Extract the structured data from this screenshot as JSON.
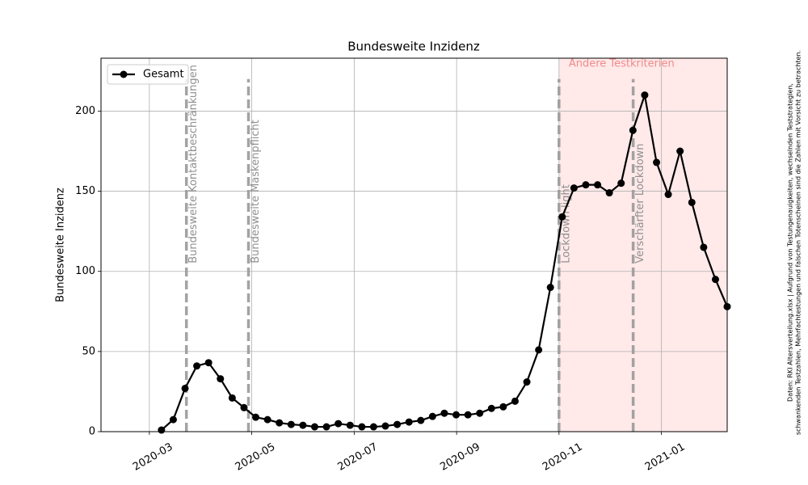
{
  "chart_data": {
    "type": "line",
    "title": "Bundesweite Inzidenz",
    "y_label": "Bundesweite Inzidenz",
    "x": [
      2020.1864,
      2020.2056,
      2020.2248,
      2020.2439,
      2020.2631,
      2020.2823,
      2020.3015,
      2020.3207,
      2020.3398,
      2020.359,
      2020.3782,
      2020.3974,
      2020.4166,
      2020.4357,
      2020.4549,
      2020.4741,
      2020.4933,
      2020.5125,
      2020.5316,
      2020.5508,
      2020.57,
      2020.5892,
      2020.6084,
      2020.6275,
      2020.6467,
      2020.6659,
      2020.6851,
      2020.7043,
      2020.7234,
      2020.7426,
      2020.7618,
      2020.781,
      2020.8002,
      2020.8193,
      2020.8385,
      2020.8577,
      2020.8769,
      2020.8961,
      2020.9152,
      2020.9344,
      2020.9536,
      2020.9728,
      2020.992,
      2021.0111,
      2021.0303,
      2021.0495,
      2021.0687,
      2021.0879,
      2021.107
    ],
    "series": [
      {
        "name": "Gesamt",
        "color": "#000000",
        "values": [
          1,
          7.5,
          27,
          41,
          43,
          33,
          21,
          15,
          9,
          7.5,
          5.5,
          4.5,
          4,
          3,
          3,
          5,
          4,
          3,
          3,
          3.5,
          4.5,
          6,
          7,
          9.5,
          11.5,
          10.5,
          10.5,
          11.5,
          14.5,
          15.5,
          19,
          31,
          51,
          90,
          134,
          152,
          154,
          154,
          149,
          155,
          188,
          210,
          168,
          148,
          175,
          143,
          115,
          95,
          78
        ]
      }
    ],
    "xlim": [
      2020.088,
      2021.107
    ],
    "ylim": [
      0,
      233
    ],
    "xticks": [
      {
        "value": 2020.1667,
        "label": "2020-03"
      },
      {
        "value": 2020.3333,
        "label": "2020-05"
      },
      {
        "value": 2020.5,
        "label": "2020-07"
      },
      {
        "value": 2020.6667,
        "label": "2020-09"
      },
      {
        "value": 2020.8333,
        "label": "2020-11"
      },
      {
        "value": 2021.0,
        "label": "2021-01"
      }
    ],
    "yticks": [
      0,
      50,
      100,
      150,
      200
    ],
    "grid": true,
    "legend": "upper left",
    "events": [
      {
        "x": 2020.227,
        "label": "Bundesweite Kontaktbeschränkungen"
      },
      {
        "x": 2020.328,
        "label": "Bundesweite Maskenpflicht"
      },
      {
        "x": 2020.8333,
        "label": "Lockdown light"
      },
      {
        "x": 2020.954,
        "label": "Verschärfter Lockdown"
      }
    ],
    "event_line_top": 220,
    "event_label_bottom": 105,
    "shaded_region": {
      "start": 2020.8333,
      "label": "Andere Testkriterien",
      "color": "#ffe9e9"
    },
    "source_note": [
      "Daten: RKI Altersverteilung.xlsx | Aufgrund von Testungenauigkeiten, wechselnden Teststrategien,",
      "schwankenden Testzahlen, Mehrfachtestungen und falschen Totenscheinen sind die Zahlen mit Vorsicht zu betrachten."
    ]
  }
}
